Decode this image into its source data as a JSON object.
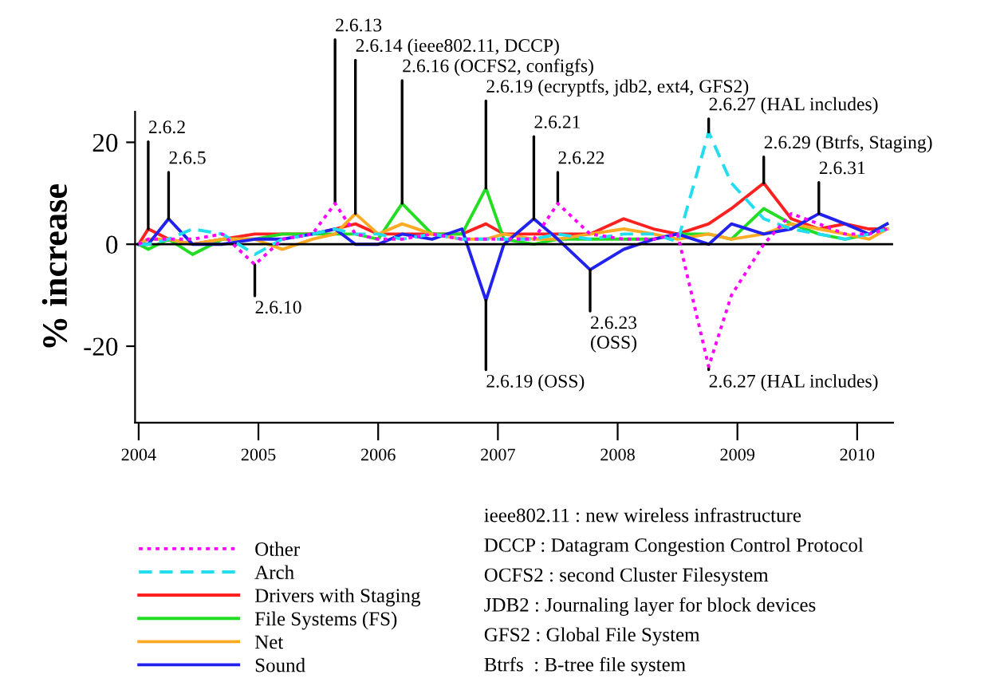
{
  "chart_data": {
    "type": "line",
    "ylabel": "% increase",
    "x": [
      2004.0,
      2004.08,
      2004.25,
      2004.45,
      2004.7,
      2004.97,
      2005.2,
      2005.45,
      2005.64,
      2005.81,
      2006.0,
      2006.2,
      2006.45,
      2006.7,
      2006.9,
      2007.05,
      2007.3,
      2007.5,
      2007.77,
      2008.05,
      2008.3,
      2008.5,
      2008.76,
      2008.95,
      2009.22,
      2009.45,
      2009.68,
      2009.9,
      2010.1,
      2010.25
    ],
    "series": [
      {
        "name": "Other",
        "color": "#ff00ff",
        "line_style": "dotted",
        "values": [
          0,
          1,
          1,
          1,
          2,
          -4,
          1,
          2,
          8,
          2,
          1,
          1,
          2,
          1,
          1,
          1,
          1,
          8,
          2,
          1,
          1,
          2,
          -24,
          -10,
          0,
          6,
          4,
          2,
          2,
          3
        ]
      },
      {
        "name": "Arch",
        "color": "#22ddee",
        "line_style": "dashed",
        "values": [
          0,
          0,
          1,
          3,
          2,
          -2,
          1,
          2,
          3,
          2,
          2,
          1,
          2,
          1,
          1,
          1,
          1,
          2,
          1,
          2,
          2,
          0.5,
          22,
          12,
          5,
          3,
          2,
          1,
          2,
          3
        ]
      },
      {
        "name": "Drivers with Staging",
        "color": "#ff2020",
        "line_style": "solid",
        "values": [
          0,
          3,
          1,
          0,
          1,
          2,
          2,
          2,
          3,
          4,
          2,
          2,
          2,
          2,
          4,
          2,
          2,
          2,
          2,
          5,
          3,
          2,
          4,
          7,
          12,
          5,
          3,
          4,
          3,
          3
        ]
      },
      {
        "name": "File Systems (FS)",
        "color": "#22dd22",
        "line_style": "solid",
        "values": [
          0,
          -1,
          1,
          -2,
          1,
          1,
          2,
          2,
          2,
          2,
          1,
          8,
          2,
          2,
          11,
          1,
          0,
          1,
          1,
          1,
          1,
          2,
          2,
          1,
          7,
          4,
          2,
          1,
          2,
          4
        ]
      },
      {
        "name": "Net",
        "color": "#ffaa22",
        "line_style": "solid",
        "values": [
          0,
          1,
          1,
          0,
          1,
          1,
          -1,
          1,
          2,
          6,
          2,
          4,
          2,
          1,
          1,
          2,
          1,
          1,
          2,
          3,
          2,
          1,
          2,
          1,
          2,
          4,
          3,
          2,
          1,
          3
        ]
      },
      {
        "name": "Sound",
        "color": "#2222ee",
        "line_style": "solid",
        "values": [
          0,
          0,
          5,
          0,
          0,
          1,
          1,
          2,
          3,
          0,
          0,
          2,
          1,
          3,
          -11,
          0,
          5,
          1,
          -5,
          -1,
          1,
          2,
          0,
          4,
          2,
          3,
          6,
          4,
          2,
          4
        ]
      }
    ],
    "xlim": [
      2003.97,
      2010.3
    ],
    "ylim": [
      -35,
      26
    ],
    "xticks": [
      2004,
      2005,
      2006,
      2007,
      2008,
      2009,
      2010
    ],
    "yticks": [
      -20,
      0,
      20
    ],
    "ref_lines": [
      {
        "axis": "y",
        "value": 0,
        "color": "#000000"
      }
    ],
    "grid": false,
    "legend": "bottom left",
    "annotations": [
      {
        "text": "2.6.2",
        "x": 2004.08,
        "y": 3
      },
      {
        "text": "2.6.5",
        "x": 2004.25,
        "y": 5
      },
      {
        "text": "2.6.10",
        "x": 2004.97,
        "y": -4
      },
      {
        "text": "2.6.13",
        "x": 2005.64,
        "y": 8
      },
      {
        "text": "2.6.14 (ieee802.11, DCCP)",
        "x": 2005.81,
        "y": 6
      },
      {
        "text": "2.6.16 (OCFS2, configfs)",
        "x": 2006.2,
        "y": 8
      },
      {
        "text": "2.6.19 (ecryptfs, jdb2, ext4, GFS2)",
        "x": 2006.9,
        "y": 11
      },
      {
        "text": "2.6.21",
        "x": 2007.3,
        "y": 5
      },
      {
        "text": "2.6.22",
        "x": 2007.5,
        "y": 8
      },
      {
        "text": "2.6.23\n(OSS)",
        "x": 2007.77,
        "y": -5
      },
      {
        "text": "2.6.19 (OSS)",
        "x": 2006.9,
        "y": -11
      },
      {
        "text": "2.6.27 (HAL includes)",
        "x": 2008.76,
        "y": 22
      },
      {
        "text": "2.6.29 (Btrfs, Staging)",
        "x": 2009.22,
        "y": 12
      },
      {
        "text": "2.6.31",
        "x": 2009.68,
        "y": 6
      },
      {
        "text": "2.6.27 (HAL includes)",
        "x": 2008.76,
        "y": -24
      },
      "ieee802.11 : new wireless infrastructure",
      "DCCP : Datagram Congestion Control Protocol",
      "OCFS2 : second Cluster Filesystem",
      "JDB2 : Journaling layer for block devices",
      "GFS2 : Global File System",
      "Btrfs  : B-tree file system"
    ]
  }
}
